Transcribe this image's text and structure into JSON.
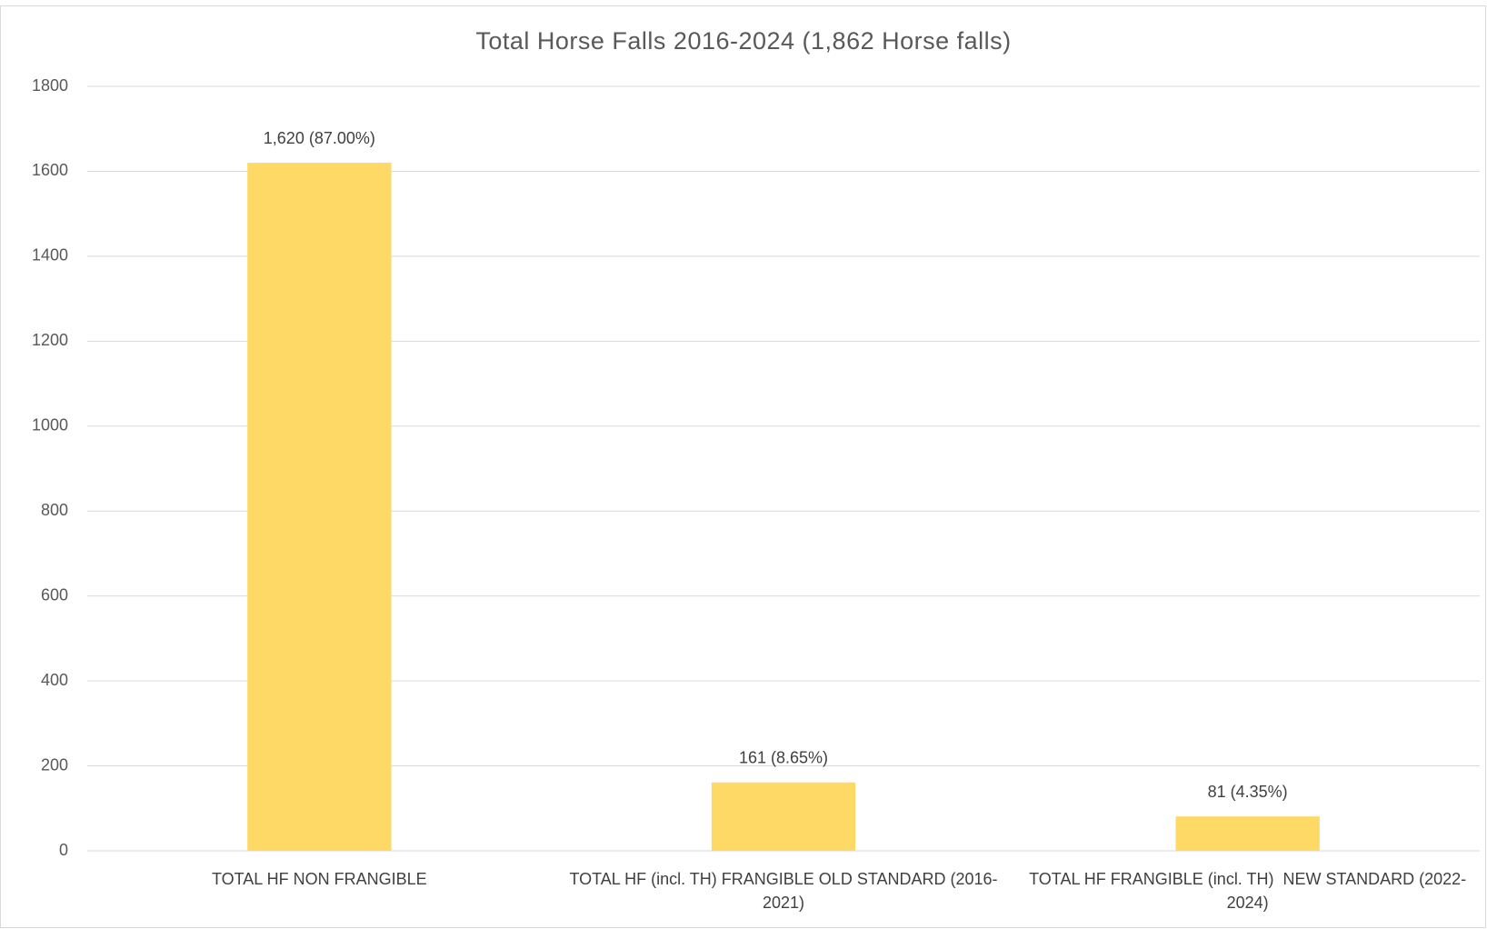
{
  "chart_data": {
    "type": "bar",
    "title": "Total Horse Falls 2016-2024 (1,862 Horse falls)",
    "categories": [
      "TOTAL HF NON FRANGIBLE",
      "TOTAL HF (incl. TH) FRANGIBLE OLD STANDARD (2016-2021)",
      "TOTAL HF FRANGIBLE (incl. TH)  NEW STANDARD (2022-2024)"
    ],
    "values": [
      1620,
      161,
      81
    ],
    "value_labels": [
      "1,620 (87.00%)",
      "161 (8.65%)",
      "81 (4.35%)"
    ],
    "color": "#ffd966",
    "ylim": [
      0,
      1800
    ],
    "yticks": [
      0,
      200,
      400,
      600,
      800,
      1000,
      1200,
      1400,
      1600,
      1800
    ],
    "grid": true
  }
}
